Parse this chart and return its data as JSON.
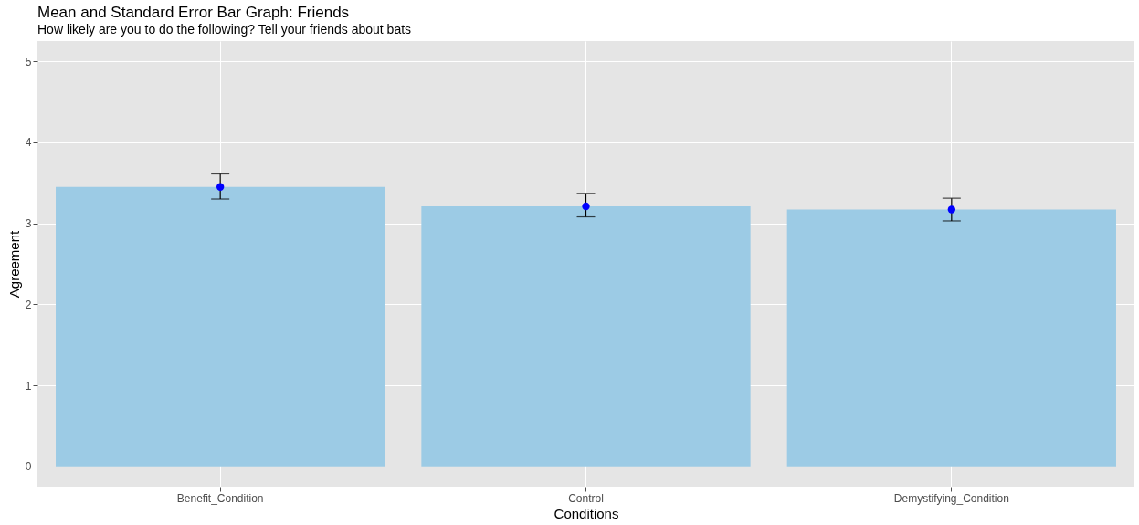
{
  "chart_data": {
    "type": "bar",
    "title": "Mean and Standard Error Bar Graph: Friends",
    "subtitle": "How likely are you to do the following? Tell your friends about bats",
    "xlabel": "Conditions",
    "ylabel": "Agreement",
    "categories": [
      "Benefit_Condition",
      "Control",
      "Demystifying_Condition"
    ],
    "series": [
      {
        "color": "#9ccbe5",
        "values": [
          3.45,
          3.21,
          3.17
        ],
        "errors": [
          [
            3.3,
            3.61
          ],
          [
            3.08,
            3.37
          ],
          [
            3.03,
            3.31
          ]
        ]
      },
      {
        "type": "scatter",
        "color": "#0000ff",
        "x": [
          "Benefit_Condition",
          "Control",
          "Demystifying_Condition"
        ],
        "values": [
          3.45,
          3.21,
          3.17
        ]
      }
    ],
    "ylim": [
      -0.25,
      5.25
    ],
    "yticks": [
      0,
      1,
      2,
      3,
      4,
      5
    ],
    "grid": true,
    "marker": "circle"
  }
}
